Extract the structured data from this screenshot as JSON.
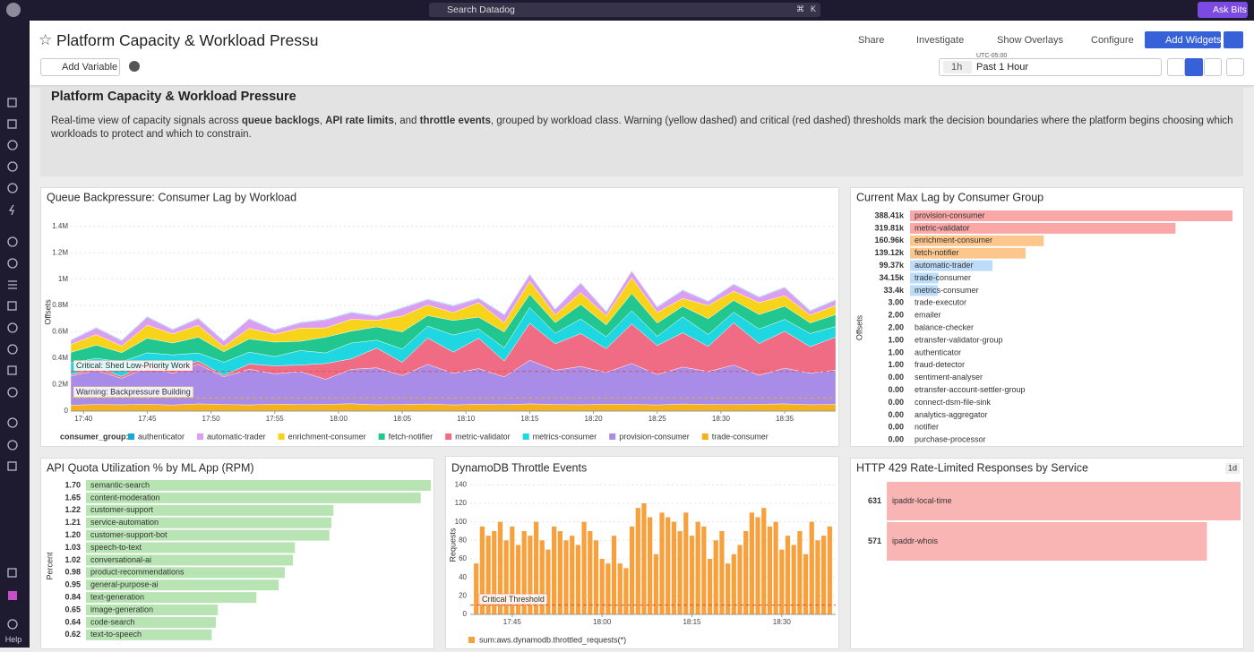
{
  "topbar": {
    "search": "Search Datadog",
    "shortcut": [
      "⌘",
      "K"
    ],
    "ask": "Ask Bits"
  },
  "header": {
    "title": "Platform Capacity & Workload Pressu",
    "share": "Share",
    "investigate": "Investigate",
    "overlays": "Show Overlays",
    "configure": "Configure",
    "add_widgets": "Add Widgets",
    "add_variable": "Add Variable",
    "timezone": "UTC-05:00",
    "range_short": "1h",
    "range": "Past 1 Hour"
  },
  "nav": {
    "help": "Help"
  },
  "note": {
    "title": "Platform Capacity & Workload Pressure",
    "text": [
      {
        "text": "Real-time view of capacity signals across ",
        "bold": false
      },
      {
        "text": "queue backlogs",
        "bold": true
      },
      {
        "text": ", ",
        "bold": false
      },
      {
        "text": "API rate limits",
        "bold": true
      },
      {
        "text": ", and ",
        "bold": false
      },
      {
        "text": "throttle events",
        "bold": true
      },
      {
        "text": ", grouped by workload class. Warning (yellow dashed) and critical (red dashed) thresholds mark the decision boundaries where the platform begins choosing which workloads to protect and which to constrain.",
        "bold": false
      }
    ]
  },
  "chart_data": [
    {
      "type": "area",
      "stacked": true,
      "title": "Queue Backpressure: Consumer Lag by Workload",
      "y_label": "Offsets",
      "legend_title": "consumer_group:",
      "grid": true,
      "x": [
        "17:39",
        "17:41",
        "17:43",
        "17:45",
        "17:47",
        "17:49",
        "17:51",
        "17:53",
        "17:55",
        "17:57",
        "17:59",
        "18:01",
        "18:03",
        "18:05",
        "18:07",
        "18:09",
        "18:11",
        "18:13",
        "18:15",
        "18:17",
        "18:19",
        "18:21",
        "18:23",
        "18:25",
        "18:27",
        "18:29",
        "18:31",
        "18:33",
        "18:35",
        "18:37",
        "18:39"
      ],
      "xlim": [
        "17:39",
        "18:39"
      ],
      "xticks": [
        "17:40",
        "17:45",
        "17:50",
        "17:55",
        "18:00",
        "18:05",
        "18:10",
        "18:15",
        "18:20",
        "18:25",
        "18:30",
        "18:35"
      ],
      "ylim": [
        0,
        1500000
      ],
      "yticks": [
        0,
        {
          "value": 200000,
          "label": "0.2M"
        },
        {
          "value": 400000,
          "label": "0.4M"
        },
        {
          "value": 600000,
          "label": "0.6M"
        },
        {
          "value": 800000,
          "label": "0.8M"
        },
        {
          "value": 1000000,
          "label": "1M"
        },
        {
          "value": 1200000,
          "label": "1.2M"
        },
        {
          "value": 1400000,
          "label": "1.4M"
        }
      ],
      "thresholds": [
        {
          "label": "Critical: Shed Low-Priority Work",
          "value": 300000,
          "color": "#e5534b"
        },
        {
          "label": "Warning: Backpressure Building",
          "value": 100000,
          "color": "#e9b320"
        }
      ],
      "series": [
        {
          "name": "authenticator",
          "color": "#14a8e0",
          "values": [
            5000,
            5000,
            5000,
            5000,
            5000,
            5000,
            5000,
            5000,
            5000,
            5000,
            5000,
            5000,
            5000,
            5000,
            5000,
            5000,
            5000,
            5000,
            5000,
            5000,
            5000,
            5000,
            5000,
            5000,
            5000,
            5000,
            5000,
            5000,
            5000,
            5000,
            5000
          ]
        },
        {
          "name": "automatic-trader",
          "color": "#dc9ef0",
          "values": [
            30000,
            50000,
            40000,
            60000,
            30000,
            50000,
            40000,
            70000,
            30000,
            40000,
            60000,
            50000,
            30000,
            60000,
            40000,
            50000,
            30000,
            60000,
            50000,
            40000,
            70000,
            30000,
            50000,
            40000,
            60000,
            30000,
            50000,
            40000,
            60000,
            30000,
            40000
          ]
        },
        {
          "name": "enrichment-consumer",
          "color": "#f7d31c",
          "values": [
            60000,
            80000,
            50000,
            100000,
            70000,
            90000,
            40000,
            80000,
            60000,
            100000,
            70000,
            90000,
            50000,
            120000,
            80000,
            60000,
            110000,
            70000,
            100000,
            60000,
            90000,
            70000,
            120000,
            80000,
            60000,
            100000,
            70000,
            90000,
            80000,
            60000,
            70000
          ]
        },
        {
          "name": "fetch-notifier",
          "color": "#22c78f",
          "values": [
            80000,
            100000,
            70000,
            110000,
            90000,
            120000,
            80000,
            100000,
            110000,
            70000,
            120000,
            90000,
            100000,
            130000,
            80000,
            110000,
            90000,
            120000,
            100000,
            80000,
            110000,
            90000,
            130000,
            100000,
            80000,
            120000,
            90000,
            110000,
            100000,
            80000,
            90000
          ]
        },
        {
          "name": "metric-validator",
          "color": "#ef6c84",
          "values": [
            10000,
            20000,
            15000,
            30000,
            20000,
            25000,
            10000,
            40000,
            60000,
            50000,
            120000,
            80000,
            150000,
            100000,
            200000,
            160000,
            230000,
            120000,
            280000,
            200000,
            250000,
            180000,
            300000,
            220000,
            260000,
            190000,
            320000,
            240000,
            280000,
            200000,
            250000
          ]
        },
        {
          "name": "metrics-consumer",
          "color": "#1ed7e0",
          "values": [
            90000,
            70000,
            110000,
            80000,
            120000,
            60000,
            100000,
            90000,
            70000,
            110000,
            80000,
            120000,
            60000,
            100000,
            90000,
            130000,
            70000,
            100000,
            120000,
            80000,
            110000,
            90000,
            100000,
            70000,
            120000,
            90000,
            80000,
            110000,
            90000,
            100000,
            80000
          ]
        },
        {
          "name": "provision-consumer",
          "color": "#a98be8",
          "values": [
            220000,
            260000,
            200000,
            280000,
            240000,
            300000,
            210000,
            270000,
            230000,
            250000,
            190000,
            260000,
            280000,
            220000,
            300000,
            240000,
            270000,
            210000,
            330000,
            260000,
            290000,
            240000,
            310000,
            230000,
            280000,
            250000,
            300000,
            220000,
            270000,
            240000,
            260000
          ]
        },
        {
          "name": "trade-consumer",
          "color": "#f5b01e",
          "values": [
            45000,
            50000,
            48000,
            52000,
            46000,
            55000,
            50000,
            47000,
            53000,
            49000,
            51000,
            56000,
            48000,
            50000,
            54000,
            47000,
            52000,
            49000,
            55000,
            50000,
            48000,
            53000,
            51000,
            47000,
            54000,
            50000,
            49000,
            52000,
            55000,
            48000,
            51000
          ]
        }
      ]
    },
    {
      "type": "toplist",
      "title": "Current Max Lag by Consumer Group",
      "y_label": "Offsets",
      "categories": [
        "provision-consumer",
        "metric-validator",
        "enrichment-consumer",
        "fetch-notifier",
        "automatic-trader",
        "trade-consumer",
        "metrics-consumer",
        "trade-executor",
        "emailer",
        "balance-checker",
        "etransfer-validator-group",
        "authenticator",
        "fraud-detector",
        "sentiment-analyser",
        "etransfer-account-settler-group",
        "connect-dsm-file-sink",
        "analytics-aggregator",
        "notifier",
        "purchase-processor"
      ],
      "values": [
        388410,
        319810,
        160960,
        139120,
        99370,
        34150,
        33400,
        3,
        2,
        2,
        1,
        1,
        1,
        0,
        0,
        0,
        0,
        0,
        0
      ],
      "value_labels": [
        "388.41k",
        "319.81k",
        "160.96k",
        "139.12k",
        "99.37k",
        "34.15k",
        "33.4k",
        "3.00",
        "2.00",
        "2.00",
        "1.00",
        "1.00",
        "1.00",
        "0.00",
        "0.00",
        "0.00",
        "0.00",
        "0.00",
        "0.00"
      ],
      "colors": [
        "#f9a7a7",
        "#f9a7a7",
        "#fcc68c",
        "#fcc68c",
        "#bcdcfa",
        "#bcdcfa",
        "#bcdcfa",
        "#bcdcfa",
        "#bcdcfa",
        "#bcdcfa",
        "#bcdcfa",
        "#bcdcfa",
        "#bcdcfa",
        "#bcdcfa",
        "#bcdcfa",
        "#bcdcfa",
        "#bcdcfa",
        "#bcdcfa",
        "#bcdcfa"
      ]
    },
    {
      "type": "toplist",
      "title": "API Quota Utilization % by ML App (RPM)",
      "y_label": "Percent",
      "color": "#b7e4b2",
      "categories": [
        "semantic-search",
        "content-moderation",
        "customer-support",
        "service-automation",
        "customer-support-bot",
        "speech-to-text",
        "conversational-ai",
        "product-recommendations",
        "general-purpose-ai",
        "text-generation",
        "image-generation",
        "code-search",
        "text-to-speech"
      ],
      "values": [
        1.7,
        1.65,
        1.22,
        1.21,
        1.2,
        1.03,
        1.02,
        0.98,
        0.95,
        0.84,
        0.65,
        0.64,
        0.62
      ],
      "value_labels": [
        "1.70",
        "1.65",
        "1.22",
        "1.21",
        "1.20",
        "1.03",
        "1.02",
        "0.98",
        "0.95",
        "0.84",
        "0.65",
        "0.64",
        "0.62"
      ]
    },
    {
      "type": "bar",
      "title": "DynamoDB Throttle Events",
      "y_label": "Requests",
      "color": "#f7a03c",
      "grid": true,
      "series_name": "sum:aws.dynamodb.throttled_requests(*)",
      "x": [
        "17:39",
        "17:40",
        "17:41",
        "17:42",
        "17:43",
        "17:44",
        "17:45",
        "17:46",
        "17:47",
        "17:48",
        "17:49",
        "17:50",
        "17:51",
        "17:52",
        "17:53",
        "17:54",
        "17:55",
        "17:56",
        "17:57",
        "17:58",
        "17:59",
        "18:00",
        "18:01",
        "18:02",
        "18:03",
        "18:04",
        "18:05",
        "18:06",
        "18:07",
        "18:08",
        "18:09",
        "18:10",
        "18:11",
        "18:12",
        "18:13",
        "18:14",
        "18:15",
        "18:16",
        "18:17",
        "18:18",
        "18:19",
        "18:20",
        "18:21",
        "18:22",
        "18:23",
        "18:24",
        "18:25",
        "18:26",
        "18:27",
        "18:28",
        "18:29",
        "18:30",
        "18:31",
        "18:32",
        "18:33",
        "18:34",
        "18:35",
        "18:36",
        "18:37",
        "18:38"
      ],
      "values": [
        55,
        95,
        85,
        90,
        100,
        80,
        95,
        75,
        90,
        85,
        100,
        80,
        70,
        95,
        90,
        80,
        85,
        75,
        100,
        90,
        80,
        60,
        55,
        85,
        55,
        50,
        95,
        115,
        120,
        105,
        65,
        110,
        105,
        100,
        90,
        110,
        85,
        100,
        95,
        60,
        80,
        90,
        55,
        65,
        75,
        90,
        110,
        105,
        115,
        95,
        100,
        70,
        85,
        75,
        90,
        65,
        100,
        80,
        85,
        95
      ],
      "xlim": [
        "17:38",
        "18:39"
      ],
      "xticks": [
        "17:45",
        "18:00",
        "18:15",
        "18:30"
      ],
      "ylim": [
        0,
        150
      ],
      "yticks": [
        0,
        20,
        40,
        60,
        80,
        100,
        120,
        140
      ],
      "thresholds": [
        {
          "label": "Critical Threshold",
          "value": 10,
          "color": "#e5534b"
        }
      ]
    },
    {
      "type": "toplist",
      "title": "HTTP 429 Rate-Limited Responses by Service",
      "badge": "1d",
      "color": "#f9b4b4",
      "categories": [
        "ipaddr-local-time",
        "ipaddr-whois"
      ],
      "values": [
        631,
        571
      ]
    }
  ]
}
